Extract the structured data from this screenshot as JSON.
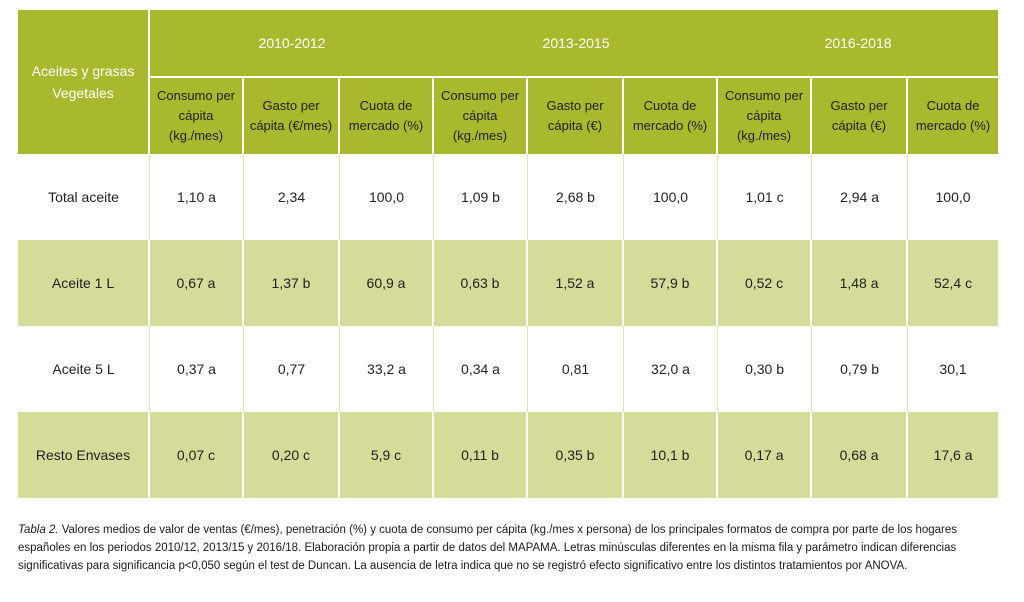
{
  "table": {
    "corner_label": "Aceites y grasas Vegetales",
    "periods": [
      "2010-2012",
      "2013-2015",
      "2016-2018"
    ],
    "subheaders": [
      "Consumo per cápita (kg./mes)",
      "Gasto per cápita (€/mes)",
      "Cuota de mercado (%)",
      "Consumo per cápita (kg./mes)",
      "Gasto per cápita (€)",
      "Cuota de mercado (%)",
      "Consumo per cápita (kg./mes)",
      "Gasto per cápita (€)",
      "Cuota de mercado (%)"
    ],
    "rows": [
      {
        "label": "Total aceite",
        "cells": [
          "1,10 a",
          "2,34",
          "100,0",
          "1,09 b",
          "2,68 b",
          "100,0",
          "1,01 c",
          "2,94 a",
          "100,0"
        ]
      },
      {
        "label": "Aceite 1 L",
        "cells": [
          "0,67 a",
          "1,37 b",
          "60,9 a",
          "0,63 b",
          "1,52 a",
          "57,9 b",
          "0,52 c",
          "1,48 a",
          "52,4 c"
        ]
      },
      {
        "label": "Aceite 5 L",
        "cells": [
          "0,37 a",
          "0,77",
          "33,2 a",
          "0,34 a",
          "0,81",
          "32,0 a",
          "0,30 b",
          "0,79 b",
          "30,1"
        ]
      },
      {
        "label": "Resto Envases",
        "cells": [
          "0,07 c",
          "0,20 c",
          "5,9 c",
          "0,11 b",
          "0,35 b",
          "10,1 b",
          "0,17 a",
          "0,68 a",
          "17,6 a"
        ]
      }
    ],
    "colors": {
      "header": "#a9b92e",
      "alt_row": "#d5dc99",
      "plain_row": "#ffffff"
    }
  },
  "caption": {
    "ref": "Tabla 2.",
    "text": " Valores medios de valor de ventas (€/mes), penetración (%) y cuota de consumo per cápita (kg./mes x persona) de los principales formatos de compra por parte de los hogares españoles en los periodos 2010/12, 2013/15 y 2016/18. Elaboración propia a partir de datos del MAPAMA. Letras minúsculas diferentes en la misma fila y parámetro indican diferencias significativas para significancia p<0,050 según el test de Duncan. La ausencia de letra indica que no se registró efecto significativo entre los distintos tratamientos por ANOVA."
  }
}
